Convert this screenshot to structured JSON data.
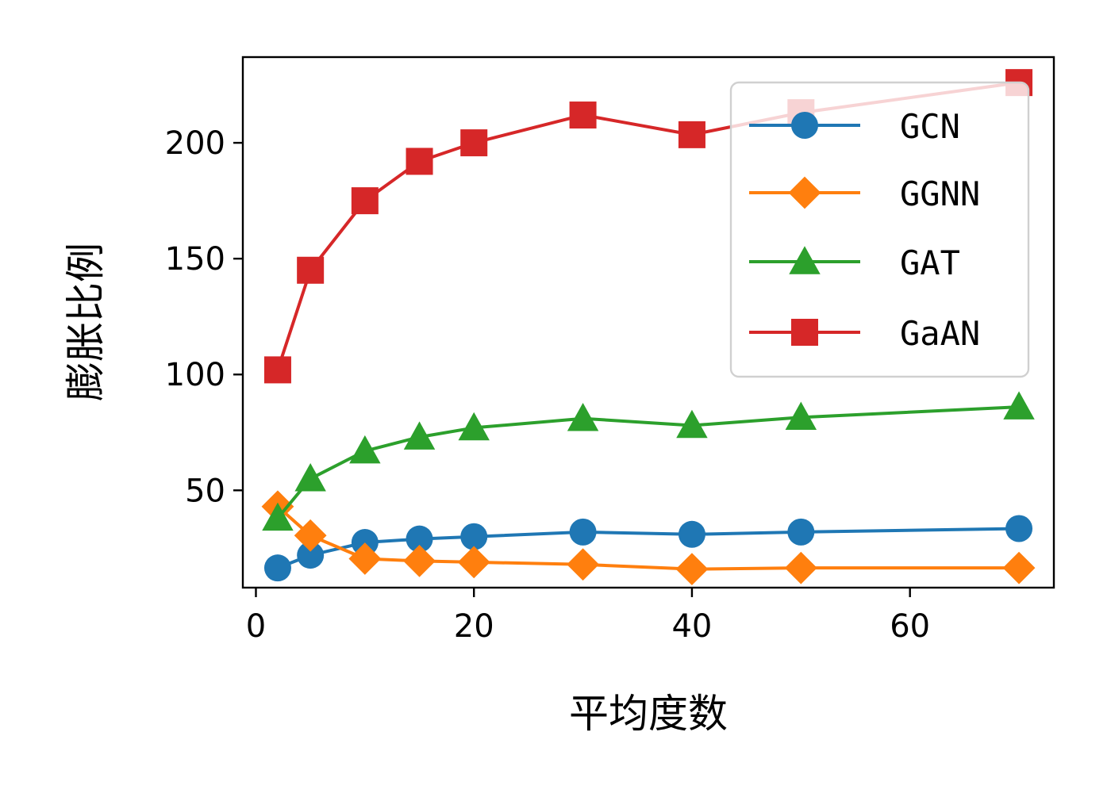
{
  "chart_data": {
    "type": "line",
    "title": "",
    "xlabel": "平均度数",
    "ylabel": "膨胀比例",
    "xlim": [
      -1.2,
      73.2
    ],
    "ylim": [
      8,
      237
    ],
    "xticks": [
      0,
      20,
      40,
      60
    ],
    "yticks": [
      50,
      100,
      150,
      200
    ],
    "grid": false,
    "legend_position": "top-right",
    "x": [
      2,
      5,
      10,
      15,
      20,
      30,
      40,
      50,
      70
    ],
    "series": [
      {
        "name": "GCN",
        "color": "#1f77b4",
        "marker": "circle",
        "values": [
          16.5,
          22,
          27.5,
          29,
          30,
          32,
          31,
          32,
          33.5
        ]
      },
      {
        "name": "GGNN",
        "color": "#ff7f0e",
        "marker": "diamond",
        "values": [
          43,
          30.5,
          20.5,
          19.5,
          19,
          18,
          16,
          16.5,
          16.5
        ]
      },
      {
        "name": "GAT",
        "color": "#2ca02c",
        "marker": "triangle",
        "values": [
          38,
          55,
          67,
          73,
          77,
          81,
          78,
          81.5,
          86
        ]
      },
      {
        "name": "GaAN",
        "color": "#d62728",
        "marker": "square",
        "values": [
          102,
          145,
          175,
          192,
          200,
          212,
          203.5,
          213,
          226
        ]
      }
    ]
  }
}
